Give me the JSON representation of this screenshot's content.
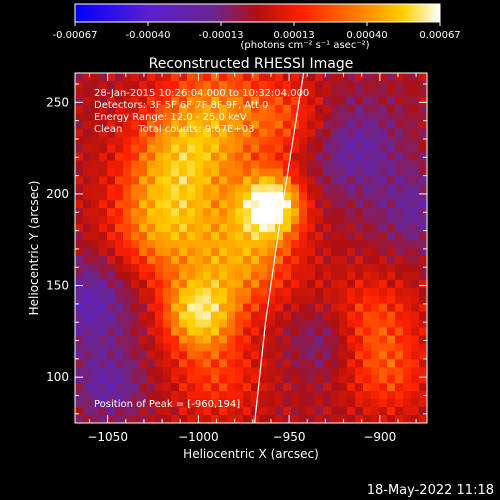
{
  "chart_data": {
    "type": "heatmap",
    "title": "Reconstructed RHESSI Image",
    "colorbar": {
      "ticks": [
        "-0.00067",
        "-0.00040",
        "-0.00013",
        "0.00013",
        "0.00040",
        "0.00067"
      ],
      "unit_label": "(photons cm⁻² s⁻¹ asec⁻²)",
      "colors": [
        "#0000ff",
        "#5a1fd0",
        "#6a2590",
        "#b01010",
        "#ff2000",
        "#ff8000",
        "#ffd000",
        "#ffffff"
      ]
    },
    "xlabel": "Heliocentric X (arcsec)",
    "ylabel": "Heliocentric Y (arcsec)",
    "xlim": [
      -1068,
      -874
    ],
    "ylim": [
      75,
      266
    ],
    "xticks": [
      -1050,
      -1000,
      -950,
      -900
    ],
    "yticks": [
      100,
      150,
      200,
      250
    ],
    "annotations": [
      "28-Jan-2015 10:26:04.000 to 10:32:04.000",
      "Detectors: 3F 5F 6F 7F 8F 9F, Att 0",
      "Energy Range: 12.0 - 25.0 keV",
      "Clean     Total counts: 9.67E+03"
    ],
    "peak_label": "Position of Peak = [-960,194]",
    "peak": {
      "x": -960,
      "y": 194
    },
    "limb_curve": [
      [
        -969,
        75
      ],
      [
        -963,
        130
      ],
      [
        -955,
        185
      ],
      [
        -947,
        235
      ],
      [
        -942,
        266
      ]
    ]
  },
  "footer": {
    "timestamp": "18-May-2022 11:18"
  }
}
